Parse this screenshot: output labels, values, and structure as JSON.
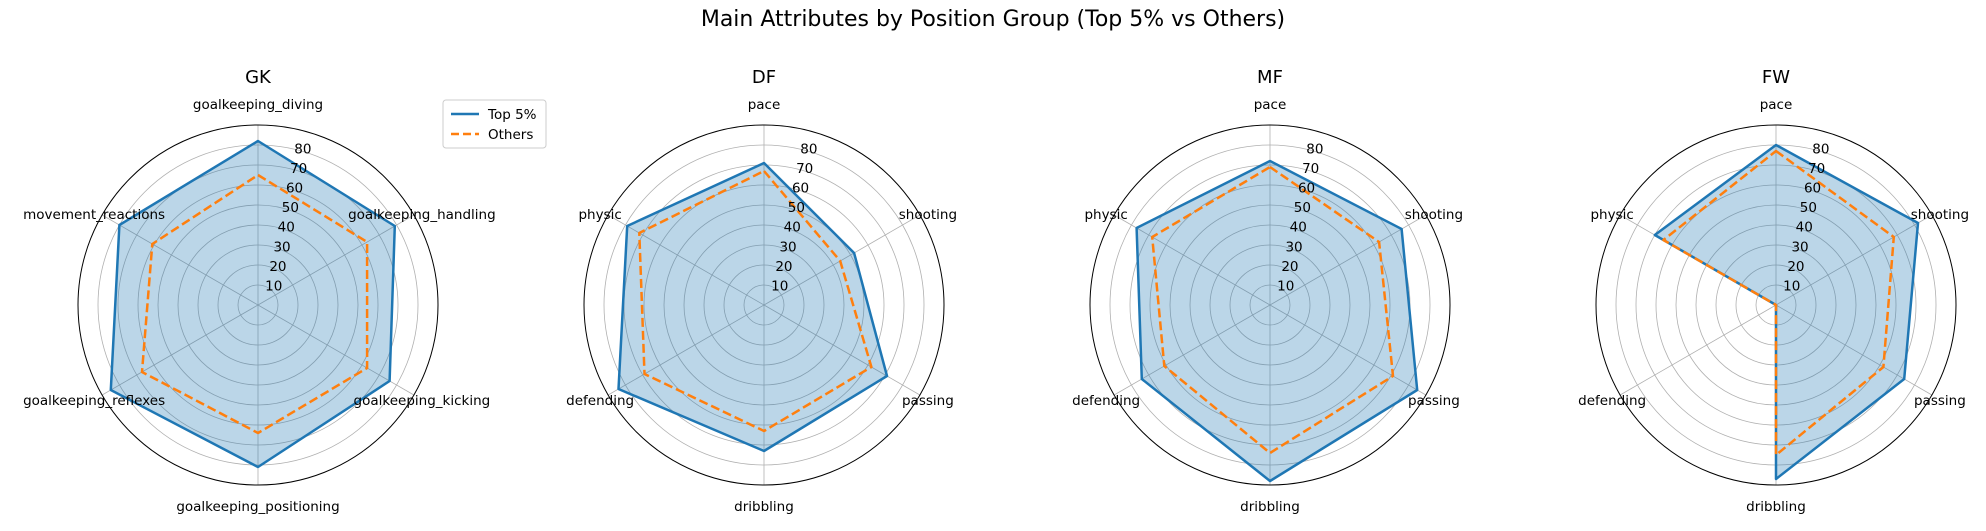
{
  "chart_data": {
    "type": "radar",
    "title": "Main Attributes by Position Group (Top 5% vs Others)",
    "rlim": [
      0,
      90
    ],
    "rticks": [
      10,
      20,
      30,
      40,
      50,
      60,
      70,
      80
    ],
    "rtick_labels": [
      "10",
      "20",
      "30",
      "40",
      "50",
      "60",
      "70",
      "80"
    ],
    "grid": true,
    "legend": {
      "placement": "upper-right of first panel",
      "entries": [
        {
          "label": "Top 5%",
          "style": "solid",
          "color": "#1f77b4"
        },
        {
          "label": "Others",
          "style": "dashed",
          "color": "#ff7f0e"
        }
      ]
    },
    "fill_color": "#1f77b4",
    "panels": [
      {
        "title": "GK",
        "categories": [
          "goalkeeping_diving",
          "goalkeeping_handling",
          "goalkeeping_kicking",
          "goalkeeping_positioning",
          "goalkeeping_reflexes",
          "movement_reactions"
        ],
        "series": [
          {
            "name": "Top 5%",
            "values": [
              82,
              79,
              76,
              81,
              85,
              80
            ]
          },
          {
            "name": "Others",
            "values": [
              65,
              63,
              63,
              64,
              67,
              61
            ]
          }
        ]
      },
      {
        "title": "DF",
        "categories": [
          "pace",
          "shooting",
          "passing",
          "dribbling",
          "defending",
          "physic"
        ],
        "series": [
          {
            "name": "Top 5%",
            "values": [
              71,
              52,
              71,
              73,
              84,
              79
            ]
          },
          {
            "name": "Others",
            "values": [
              67,
              44,
              62,
              63,
              69,
              72
            ]
          }
        ]
      },
      {
        "title": "MF",
        "categories": [
          "pace",
          "shooting",
          "passing",
          "dribbling",
          "defending",
          "physic"
        ],
        "series": [
          {
            "name": "Top 5%",
            "values": [
              72,
              76,
              85,
              88,
              74,
              77
            ]
          },
          {
            "name": "Others",
            "values": [
              69,
              63,
              71,
              74,
              61,
              68
            ]
          }
        ]
      },
      {
        "title": "FW",
        "categories": [
          "pace",
          "shooting",
          "passing",
          "dribbling",
          "defending",
          "physic"
        ],
        "series": [
          {
            "name": "Top 5%",
            "values": [
              80,
              82,
              74,
              87,
              0,
              70
            ]
          },
          {
            "name": "Others",
            "values": [
              77,
              68,
              62,
              75,
              0,
              65
            ]
          }
        ]
      }
    ]
  }
}
